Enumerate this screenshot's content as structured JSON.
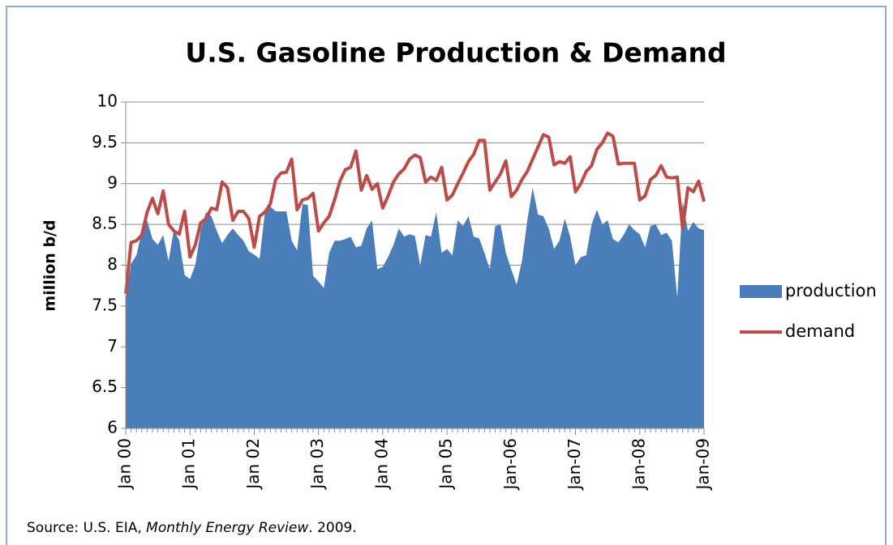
{
  "chart_data": {
    "type": "area_line",
    "title": "U.S. Gasoline Production & Demand",
    "y_axis_label": "million b/d",
    "source": {
      "prefix": "Source: U.S. EIA, ",
      "italic": "Monthly Energy Review",
      "suffix": ". 2009."
    },
    "categories": [
      "Jan 00",
      null,
      null,
      null,
      null,
      null,
      null,
      null,
      null,
      null,
      null,
      null,
      "Jan 01",
      null,
      null,
      null,
      null,
      null,
      null,
      null,
      null,
      null,
      null,
      null,
      "Jan 02",
      null,
      null,
      null,
      null,
      null,
      null,
      null,
      null,
      null,
      null,
      null,
      "Jan 03",
      null,
      null,
      null,
      null,
      null,
      null,
      null,
      null,
      null,
      null,
      null,
      "Jan 04",
      null,
      null,
      null,
      null,
      null,
      null,
      null,
      null,
      null,
      null,
      null,
      "Jan 05",
      null,
      null,
      null,
      null,
      null,
      null,
      null,
      null,
      null,
      null,
      null,
      "Jan-06",
      null,
      null,
      null,
      null,
      null,
      null,
      null,
      null,
      null,
      null,
      null,
      "Jan-07",
      null,
      null,
      null,
      null,
      null,
      null,
      null,
      null,
      null,
      null,
      null,
      "Jan-08",
      null,
      null,
      null,
      null,
      null,
      null,
      null,
      null,
      null,
      null,
      null,
      "Jan-09"
    ],
    "series": [
      {
        "name": "production",
        "kind": "area",
        "color": "#4a7ebb",
        "values": [
          7.58,
          8.02,
          8.12,
          8.42,
          8.55,
          8.32,
          8.25,
          8.37,
          8.05,
          8.44,
          8.3,
          7.88,
          7.83,
          8.0,
          8.43,
          8.65,
          8.6,
          8.42,
          8.27,
          8.37,
          8.45,
          8.37,
          8.3,
          8.17,
          8.13,
          8.08,
          8.65,
          8.72,
          8.66,
          8.66,
          8.66,
          8.3,
          8.18,
          8.75,
          8.74,
          7.87,
          7.8,
          7.72,
          8.15,
          8.3,
          8.3,
          8.32,
          8.35,
          8.22,
          8.24,
          8.45,
          8.55,
          7.95,
          7.98,
          8.1,
          8.25,
          8.45,
          8.35,
          8.38,
          8.36,
          8.0,
          8.37,
          8.35,
          8.65,
          8.15,
          8.2,
          8.12,
          8.55,
          8.48,
          8.6,
          8.35,
          8.33,
          8.15,
          7.95,
          8.48,
          8.5,
          8.15,
          7.95,
          7.76,
          8.05,
          8.55,
          8.95,
          8.62,
          8.6,
          8.45,
          8.2,
          8.3,
          8.57,
          8.35,
          8.0,
          8.1,
          8.12,
          8.5,
          8.68,
          8.5,
          8.55,
          8.32,
          8.28,
          8.37,
          8.5,
          8.43,
          8.38,
          8.22,
          8.48,
          8.5,
          8.37,
          8.4,
          8.3,
          7.6,
          8.78,
          8.42,
          8.53,
          8.45,
          8.43
        ]
      },
      {
        "name": "demand",
        "kind": "line",
        "color": "#be4b48",
        "values": [
          7.65,
          8.28,
          8.3,
          8.37,
          8.65,
          8.82,
          8.63,
          8.91,
          8.5,
          8.42,
          8.38,
          8.66,
          8.1,
          8.25,
          8.52,
          8.57,
          8.7,
          8.68,
          9.02,
          8.95,
          8.55,
          8.66,
          8.66,
          8.57,
          8.22,
          8.6,
          8.65,
          8.75,
          9.05,
          9.13,
          9.14,
          9.3,
          8.68,
          8.8,
          8.82,
          8.88,
          8.42,
          8.52,
          8.6,
          8.8,
          9.03,
          9.17,
          9.2,
          9.4,
          8.92,
          9.1,
          8.93,
          9.0,
          8.7,
          8.85,
          9.02,
          9.12,
          9.18,
          9.3,
          9.35,
          9.32,
          9.02,
          9.08,
          9.04,
          9.2,
          8.8,
          8.86,
          9.0,
          9.13,
          9.27,
          9.36,
          9.53,
          9.53,
          8.92,
          9.02,
          9.12,
          9.28,
          8.84,
          8.92,
          9.05,
          9.15,
          9.3,
          9.45,
          9.6,
          9.57,
          9.23,
          9.27,
          9.25,
          9.33,
          8.9,
          9.0,
          9.15,
          9.22,
          9.42,
          9.5,
          9.62,
          9.58,
          9.24,
          9.25,
          9.25,
          9.25,
          8.8,
          8.85,
          9.05,
          9.1,
          9.22,
          9.08,
          9.07,
          9.08,
          8.45,
          8.95,
          8.9,
          9.03,
          8.78
        ]
      }
    ],
    "ylim": [
      6,
      10
    ],
    "yticks": [
      6,
      6.5,
      7,
      7.5,
      8,
      8.5,
      9,
      9.5,
      10
    ],
    "grid": true,
    "legend": "right"
  }
}
